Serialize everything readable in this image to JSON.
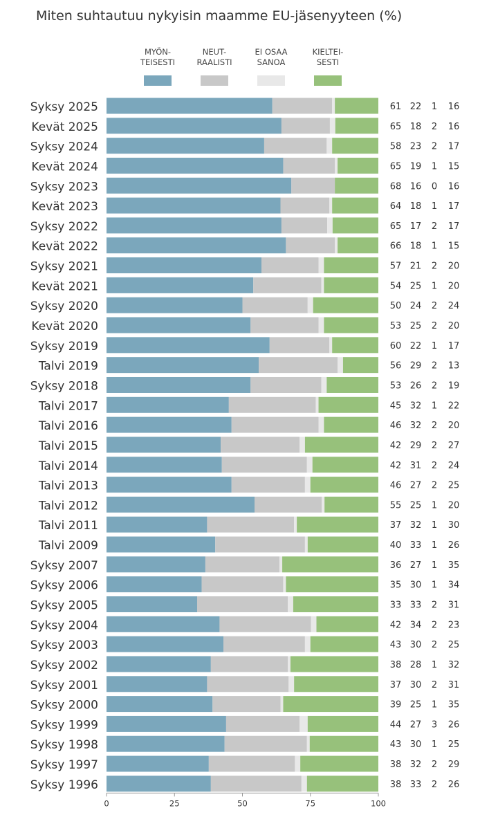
{
  "chart_data": {
    "type": "bar",
    "stacked": true,
    "orientation": "horizontal",
    "title": "Miten suhtautuu nykyisin maamme EU-jäsenyyteen (%)",
    "xlim": [
      0,
      100
    ],
    "xticks": [
      0,
      25,
      50,
      75,
      100
    ],
    "legend_position": "top",
    "categories": [
      "Syksy 2025",
      "Kevät 2025",
      "Syksy 2024",
      "Kevät 2024",
      "Syksy 2023",
      "Kevät 2023",
      "Syksy 2022",
      "Kevät 2022",
      "Syksy 2021",
      "Kevät 2021",
      "Syksy 2020",
      "Kevät 2020",
      "Syksy 2019",
      "Talvi 2019",
      "Syksy 2018",
      "Talvi 2017",
      "Talvi 2016",
      "Talvi 2015",
      "Talvi 2014",
      "Talvi 2013",
      "Talvi 2012",
      "Talvi 2011",
      "Talvi 2009",
      "Syksy 2007",
      "Syksy 2006",
      "Syksy 2005",
      "Syksy 2004",
      "Syksy 2003",
      "Syksy 2002",
      "Syksy 2001",
      "Syksy 2000",
      "Syksy 1999",
      "Syksy 1998",
      "Syksy 1997",
      "Syksy 1996"
    ],
    "series": [
      {
        "name": "MYÖN-TEISESTI",
        "label_lines": [
          "MYÖN-",
          "TEISESTI"
        ],
        "color": "#7ba7bc",
        "values": [
          61,
          65,
          58,
          65,
          68,
          64,
          65,
          66,
          57,
          54,
          50,
          53,
          60,
          56,
          53,
          45,
          46,
          42,
          42,
          46,
          55,
          37,
          40,
          36,
          35,
          33,
          42,
          43,
          38,
          37,
          39,
          44,
          43,
          38,
          38
        ]
      },
      {
        "name": "NEUT-RAALISTI",
        "label_lines": [
          "NEUT-",
          "RAALISTI"
        ],
        "color": "#c8c8c8",
        "values": [
          22,
          18,
          23,
          19,
          16,
          18,
          17,
          18,
          21,
          25,
          24,
          25,
          22,
          29,
          26,
          32,
          32,
          29,
          31,
          27,
          25,
          32,
          33,
          27,
          30,
          33,
          34,
          30,
          28,
          30,
          25,
          27,
          30,
          32,
          33
        ]
      },
      {
        "name": "EI OSAA SANOA",
        "label_lines": [
          "EI OSAA",
          "SANOA"
        ],
        "color": "#e8e8e8",
        "values": [
          1,
          2,
          2,
          1,
          0,
          1,
          2,
          1,
          2,
          1,
          2,
          2,
          1,
          2,
          2,
          1,
          2,
          2,
          2,
          2,
          1,
          1,
          1,
          1,
          1,
          2,
          2,
          2,
          1,
          2,
          1,
          3,
          1,
          2,
          2
        ]
      },
      {
        "name": "KIELTEI-SESTI",
        "label_lines": [
          "KIELTEI-",
          "SESTI"
        ],
        "color": "#97c17b",
        "values": [
          16,
          16,
          17,
          15,
          16,
          17,
          17,
          15,
          20,
          20,
          24,
          20,
          17,
          13,
          19,
          22,
          20,
          27,
          24,
          25,
          20,
          30,
          26,
          35,
          34,
          31,
          23,
          25,
          32,
          31,
          35,
          26,
          25,
          29,
          26
        ]
      }
    ]
  }
}
